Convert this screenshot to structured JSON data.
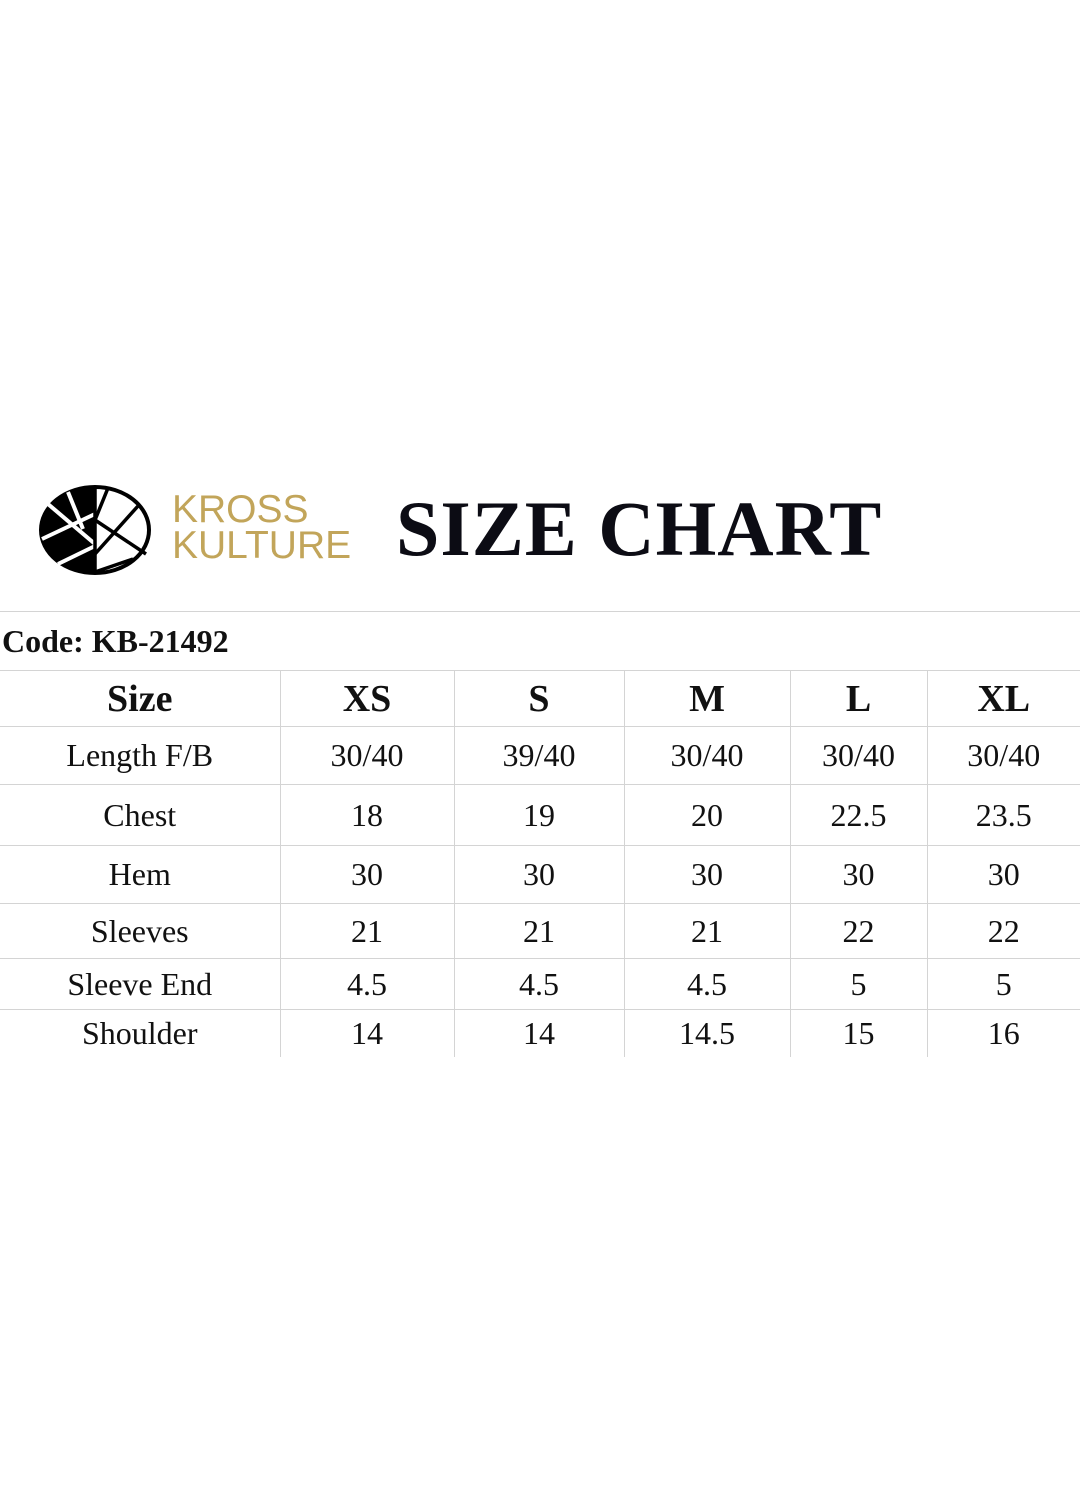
{
  "header": {
    "brand_line1": "KROSS",
    "brand_line2": "KULTURE",
    "title": "SIZE CHART",
    "brand_color": "#c2a55a",
    "logo_icon": "kross-kulture-circle-logo"
  },
  "code": "Code: KB-21492",
  "table": {
    "columns": [
      "Size",
      "XS",
      "S",
      "M",
      "L",
      "XL"
    ],
    "rows": [
      [
        "Length F/B",
        "30/40",
        "39/40",
        "30/40",
        "30/40",
        "30/40"
      ],
      [
        "Chest",
        "18",
        "19",
        "20",
        "22.5",
        "23.5"
      ],
      [
        "Hem",
        "30",
        "30",
        "30",
        "30",
        "30"
      ],
      [
        "Sleeves",
        "21",
        "21",
        "21",
        "22",
        "22"
      ],
      [
        "Sleeve End",
        "4.5",
        "4.5",
        "4.5",
        "5",
        "5"
      ],
      [
        "Shoulder",
        "14",
        "14",
        "14.5",
        "15",
        "16"
      ]
    ]
  }
}
